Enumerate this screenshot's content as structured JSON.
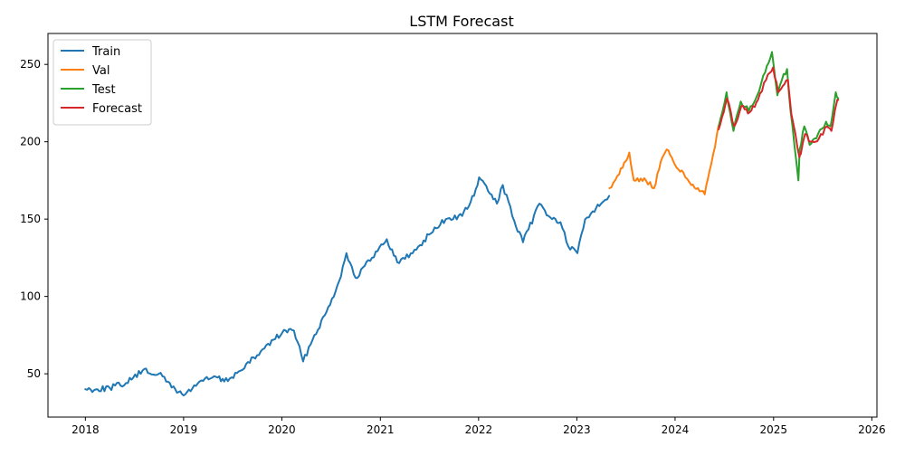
{
  "chart_data": {
    "type": "line",
    "title": "LSTM Forecast",
    "xlabel": "",
    "ylabel": "",
    "x_axis_type": "date",
    "xlim": [
      "2017-08-15",
      "2026-01-20"
    ],
    "ylim": [
      22,
      270
    ],
    "x_ticks": [
      "2018",
      "2019",
      "2020",
      "2021",
      "2022",
      "2023",
      "2024",
      "2025",
      "2026"
    ],
    "y_ticks": [
      50,
      100,
      150,
      200,
      250
    ],
    "grid": false,
    "legend_position": "top-left",
    "series": [
      {
        "name": "Train",
        "color": "#1f77b4",
        "x": [
          "2018-01-01",
          "2018-02-15",
          "2018-04-01",
          "2018-06-01",
          "2018-08-01",
          "2018-10-01",
          "2018-12-01",
          "2019-01-01",
          "2019-03-01",
          "2019-05-01",
          "2019-06-01",
          "2019-08-01",
          "2019-10-01",
          "2019-12-01",
          "2020-01-15",
          "2020-02-15",
          "2020-03-20",
          "2020-05-01",
          "2020-06-15",
          "2020-08-01",
          "2020-08-28",
          "2020-10-01",
          "2020-12-01",
          "2021-01-25",
          "2021-03-05",
          "2021-05-01",
          "2021-07-01",
          "2021-09-01",
          "2021-11-01",
          "2021-12-15",
          "2022-01-03",
          "2022-03-10",
          "2022-04-01",
          "2022-05-20",
          "2022-06-15",
          "2022-08-15",
          "2022-10-01",
          "2022-11-01",
          "2022-12-01",
          "2023-01-03",
          "2023-02-01",
          "2023-03-01",
          "2023-04-01",
          "2023-05-01"
        ],
        "y": [
          40,
          40,
          41,
          44,
          52,
          50,
          40,
          36,
          45,
          48,
          45,
          52,
          62,
          72,
          78,
          78,
          58,
          75,
          90,
          110,
          128,
          112,
          125,
          137,
          122,
          128,
          140,
          150,
          152,
          165,
          177,
          160,
          172,
          145,
          135,
          160,
          150,
          148,
          132,
          128,
          150,
          155,
          160,
          165
        ]
      },
      {
        "name": "Val",
        "color": "#ff7f0e",
        "x": [
          "2023-05-02",
          "2023-06-01",
          "2023-07-15",
          "2023-08-01",
          "2023-09-15",
          "2023-10-15",
          "2023-11-15",
          "2023-12-01",
          "2024-01-01",
          "2024-02-01",
          "2024-03-01",
          "2024-04-01",
          "2024-04-20",
          "2024-05-15",
          "2024-06-10"
        ],
        "y": [
          170,
          178,
          193,
          175,
          175,
          170,
          190,
          195,
          185,
          180,
          172,
          168,
          166,
          186,
          210
        ]
      },
      {
        "name": "Test",
        "color": "#2ca02c",
        "x": [
          "2024-06-11",
          "2024-07-10",
          "2024-08-05",
          "2024-09-01",
          "2024-10-01",
          "2024-11-01",
          "2024-12-01",
          "2024-12-26",
          "2025-01-15",
          "2025-02-01",
          "2025-02-20",
          "2025-03-05",
          "2025-04-03",
          "2025-04-08",
          "2025-04-25",
          "2025-05-15",
          "2025-06-15",
          "2025-07-15",
          "2025-08-01",
          "2025-08-20",
          "2025-08-29"
        ],
        "y": [
          210,
          232,
          207,
          226,
          220,
          230,
          245,
          258,
          230,
          240,
          247,
          220,
          175,
          195,
          210,
          198,
          205,
          213,
          210,
          232,
          228
        ]
      },
      {
        "name": "Forecast",
        "color": "#d62728",
        "x": [
          "2024-06-11",
          "2024-07-12",
          "2024-08-08",
          "2024-09-03",
          "2024-10-04",
          "2024-11-04",
          "2024-12-04",
          "2024-12-30",
          "2025-01-18",
          "2025-02-04",
          "2025-02-23",
          "2025-03-08",
          "2025-04-07",
          "2025-04-12",
          "2025-04-28",
          "2025-05-18",
          "2025-06-18",
          "2025-07-18",
          "2025-08-04",
          "2025-08-23",
          "2025-08-29"
        ],
        "y": [
          208,
          228,
          210,
          223,
          219,
          227,
          240,
          248,
          232,
          236,
          240,
          218,
          190,
          192,
          205,
          200,
          202,
          210,
          207,
          225,
          227
        ]
      }
    ]
  }
}
